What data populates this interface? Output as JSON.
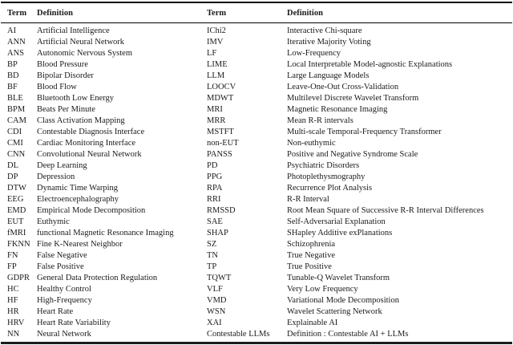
{
  "table": {
    "colors": {
      "background": "#ffffff",
      "text": "#1a1a1a",
      "rule": "#000000"
    },
    "headers": [
      "Term",
      "Definition",
      "Term",
      "Definition"
    ],
    "rows": [
      [
        "AI",
        "Artificial Intelligence",
        "IChi2",
        "Interactive Chi-square"
      ],
      [
        "ANN",
        "Artificial Neural Network",
        "IMV",
        "Iterative Majority Voting"
      ],
      [
        "ANS",
        "Autonomic Nervous System",
        "LF",
        "Low-Frequency"
      ],
      [
        "BP",
        "Blood Pressure",
        "LIME",
        "Local Interpretable Model-agnostic Explanations"
      ],
      [
        "BD",
        "Bipolar Disorder",
        "LLM",
        "Large Language Models"
      ],
      [
        "BF",
        "Blood Flow",
        "LOOCV",
        "Leave-One-Out Cross-Validation"
      ],
      [
        "BLE",
        "Bluetooth Low Energy",
        "MDWT",
        "Multilevel Discrete Wavelet Transform"
      ],
      [
        "BPM",
        "Beats Per Minute",
        "MRI",
        "Magnetic Resonance Imaging"
      ],
      [
        "CAM",
        "Class Activation Mapping",
        "MRR",
        "Mean R-R intervals"
      ],
      [
        "CDI",
        "Contestable Diagnosis Interface",
        "MSTFT",
        "Multi-scale Temporal-Frequency Transformer"
      ],
      [
        "CMI",
        "Cardiac Monitoring Interface",
        "non-EUT",
        "Non-euthymic"
      ],
      [
        "CNN",
        "Convolutional Neural Network",
        "PANSS",
        "Positive and Negative Syndrome Scale"
      ],
      [
        "DL",
        "Deep Learning",
        "PD",
        "Psychiatric Disorders"
      ],
      [
        "DP",
        "Depression",
        "PPG",
        "Photoplethysmography"
      ],
      [
        "DTW",
        "Dynamic Time Warping",
        "RPA",
        "Recurrence Plot Analysis"
      ],
      [
        "EEG",
        "Electroencephalography",
        "RRI",
        "R-R Interval"
      ],
      [
        "EMD",
        "Empirical Mode Decomposition",
        "RMSSD",
        "Root Mean Square of Successive R-R Interval Differences"
      ],
      [
        "EUT",
        "Euthymic",
        "SAE",
        "Self-Adversarial Explanation"
      ],
      [
        "fMRI",
        "functional Magnetic Resonance Imaging",
        "SHAP",
        "SHapley Additive exPlanations"
      ],
      [
        "FKNN",
        "Fine K-Nearest Neighbor",
        "SZ",
        "Schizophrenia"
      ],
      [
        "FN",
        "False Negative",
        "TN",
        "True Negative"
      ],
      [
        "FP",
        "False Positive",
        "TP",
        "True Positive"
      ],
      [
        "GDPR",
        "General Data Protection Regulation",
        "TQWT",
        "Tunable-Q Wavelet Transform"
      ],
      [
        "HC",
        "Healthy Control",
        "VLF",
        "Very Low Frequency"
      ],
      [
        "HF",
        "High-Frequency",
        "VMD",
        "Variational Mode Decomposition"
      ],
      [
        "HR",
        "Heart Rate",
        "WSN",
        "Wavelet Scattering Network"
      ],
      [
        "HRV",
        "Heart Rate Variability",
        "XAI",
        "Explainable AI"
      ],
      [
        "NN",
        "Neural Network",
        "Contestable LLMs",
        "Definition : Contestable AI + LLMs"
      ]
    ]
  }
}
